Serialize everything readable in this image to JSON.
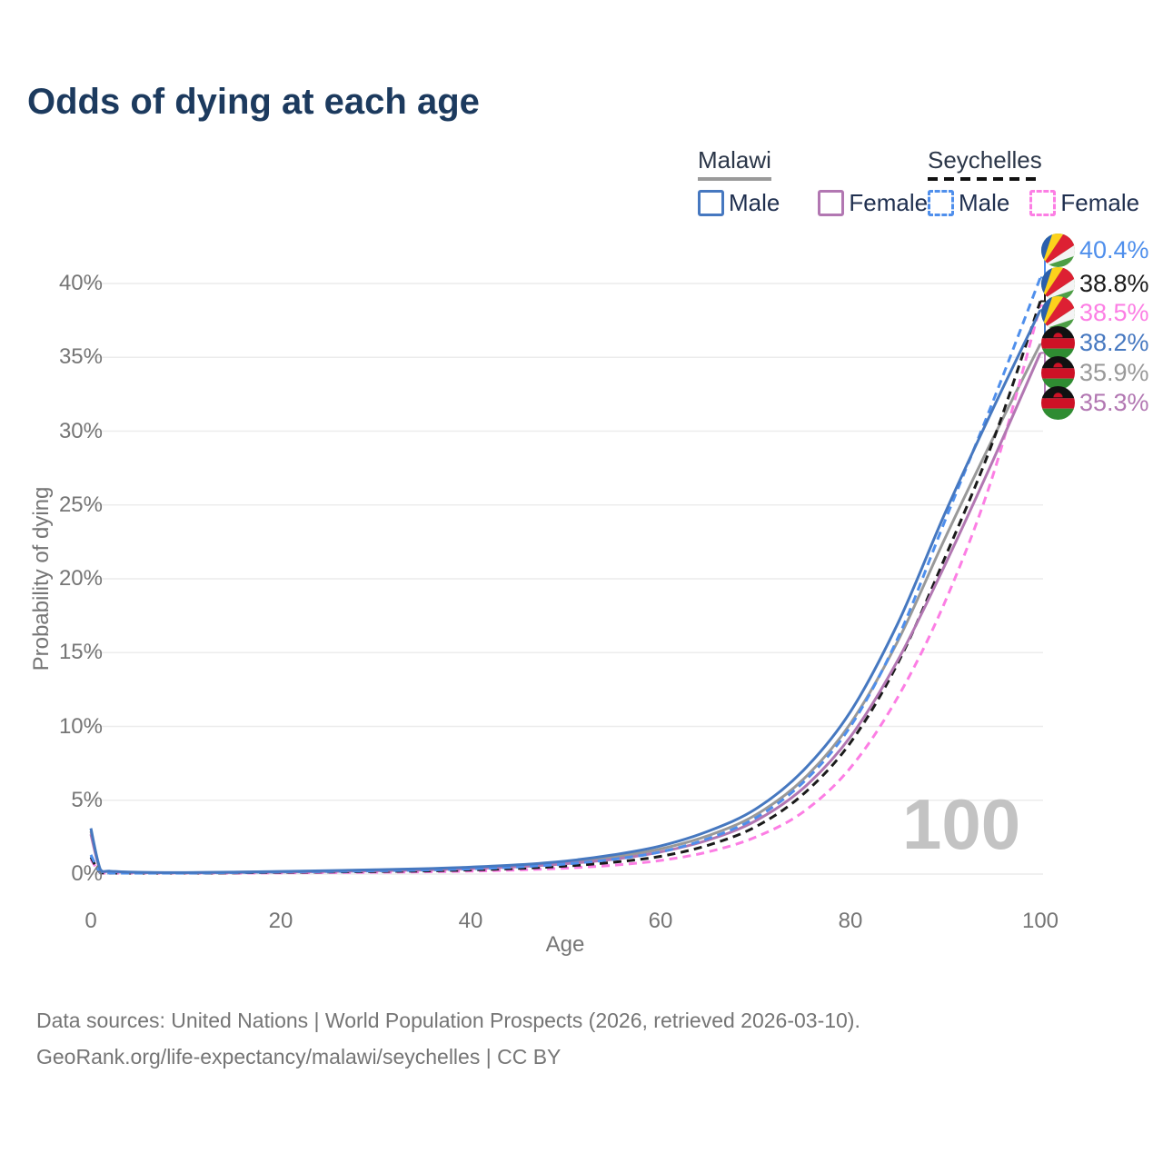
{
  "title": "Odds of dying at each age",
  "watermark": "100",
  "legend": {
    "groups": [
      {
        "country": "Malawi",
        "line_style": "solid",
        "line_color": "#9a9a9a",
        "items": [
          {
            "label": "Male",
            "color": "#4678c0",
            "dashed": false
          },
          {
            "label": "Female",
            "color": "#b277b2",
            "dashed": false
          }
        ]
      },
      {
        "country": "Seychelles",
        "line_style": "dashed",
        "line_color": "#1a1a1a",
        "items": [
          {
            "label": "Male",
            "color": "#4f8fec",
            "dashed": true
          },
          {
            "label": "Female",
            "color": "#fc7ee4",
            "dashed": true
          }
        ]
      }
    ]
  },
  "axes": {
    "x": {
      "title": "Age",
      "ticks": [
        0,
        20,
        40,
        60,
        80,
        100
      ],
      "min": 0,
      "max": 100
    },
    "y": {
      "title": "Probability of dying",
      "ticks": [
        "0%",
        "5%",
        "10%",
        "15%",
        "20%",
        "25%",
        "30%",
        "35%",
        "40%"
      ],
      "tick_values": [
        0,
        5,
        10,
        15,
        20,
        25,
        30,
        35,
        40
      ],
      "min": 0,
      "max": 40
    }
  },
  "chart_data": {
    "type": "line",
    "title": "Odds of dying at each age",
    "xlabel": "Age",
    "ylabel": "Probability of dying",
    "xlim": [
      0,
      100
    ],
    "ylim": [
      0,
      40
    ],
    "y_unit": "%",
    "grid": "horizontal",
    "legend_position": "top-right",
    "x": [
      0,
      1,
      2,
      5,
      10,
      15,
      20,
      25,
      30,
      35,
      40,
      45,
      50,
      55,
      60,
      65,
      70,
      75,
      80,
      85,
      90,
      95,
      100
    ],
    "series": [
      {
        "name": "malawi_both",
        "country": "Malawi",
        "sex": "Both",
        "color": "#999999",
        "dash": false,
        "values": [
          2.9,
          0.28,
          0.18,
          0.11,
          0.09,
          0.12,
          0.16,
          0.2,
          0.26,
          0.32,
          0.42,
          0.56,
          0.78,
          1.15,
          1.7,
          2.6,
          4.0,
          6.4,
          10.2,
          15.8,
          22.8,
          29.5,
          35.9
        ]
      },
      {
        "name": "seychelles_female",
        "country": "Seychelles",
        "sex": "Female",
        "color": "#fc7ee4",
        "dash": true,
        "values": [
          1.0,
          0.08,
          0.05,
          0.04,
          0.04,
          0.06,
          0.08,
          0.1,
          0.12,
          0.15,
          0.2,
          0.28,
          0.4,
          0.6,
          0.92,
          1.5,
          2.5,
          4.2,
          7.2,
          12.0,
          18.5,
          27.0,
          38.5
        ]
      },
      {
        "name": "seychelles_both",
        "country": "Seychelles",
        "sex": "Both",
        "color": "#1a1a1a",
        "dash": true,
        "values": [
          1.15,
          0.09,
          0.06,
          0.05,
          0.05,
          0.08,
          0.11,
          0.14,
          0.17,
          0.21,
          0.28,
          0.38,
          0.54,
          0.8,
          1.2,
          1.95,
          3.2,
          5.4,
          8.9,
          14.3,
          21.5,
          29.3,
          38.8
        ]
      },
      {
        "name": "malawi_female",
        "country": "Malawi",
        "sex": "Female",
        "color": "#b277b2",
        "dash": false,
        "values": [
          2.7,
          0.26,
          0.17,
          0.1,
          0.08,
          0.1,
          0.14,
          0.17,
          0.22,
          0.28,
          0.37,
          0.5,
          0.7,
          1.0,
          1.5,
          2.3,
          3.6,
          5.8,
          9.3,
          14.5,
          21.0,
          28.0,
          35.3
        ]
      },
      {
        "name": "seychelles_male",
        "country": "Seychelles",
        "sex": "Male",
        "color": "#4f8fec",
        "dash": true,
        "values": [
          1.3,
          0.1,
          0.07,
          0.05,
          0.06,
          0.1,
          0.15,
          0.18,
          0.22,
          0.27,
          0.35,
          0.48,
          0.68,
          1.0,
          1.5,
          2.4,
          3.8,
          6.2,
          10.0,
          16.0,
          24.0,
          32.0,
          40.4
        ]
      },
      {
        "name": "malawi_male",
        "country": "Malawi",
        "sex": "Male",
        "color": "#4678c0",
        "dash": false,
        "values": [
          3.1,
          0.3,
          0.2,
          0.12,
          0.1,
          0.13,
          0.18,
          0.23,
          0.29,
          0.36,
          0.47,
          0.63,
          0.88,
          1.3,
          1.9,
          2.9,
          4.4,
          7.0,
          11.0,
          17.0,
          24.5,
          31.5,
          38.2
        ]
      }
    ]
  },
  "end_labels": [
    {
      "value": "40.4%",
      "flag": "seychelles",
      "color": "#4f8fec",
      "series": "seychelles_male"
    },
    {
      "value": "38.8%",
      "flag": "seychelles",
      "color": "#1a1a1a",
      "series": "seychelles_both"
    },
    {
      "value": "38.5%",
      "flag": "seychelles",
      "color": "#fc7ee4",
      "series": "seychelles_female"
    },
    {
      "value": "38.2%",
      "flag": "malawi",
      "color": "#4678c0",
      "series": "malawi_male"
    },
    {
      "value": "35.9%",
      "flag": "malawi",
      "color": "#999999",
      "series": "malawi_both"
    },
    {
      "value": "35.3%",
      "flag": "malawi",
      "color": "#b277b2",
      "series": "malawi_female"
    }
  ],
  "footer": {
    "line1": "Data sources: United Nations | World Population Prospects (2026, retrieved 2026-03-10).",
    "line2": "GeoRank.org/life-expectancy/malawi/seychelles | CC BY"
  }
}
